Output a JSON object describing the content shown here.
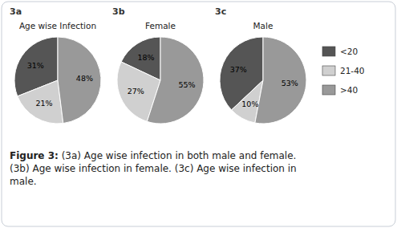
{
  "chart_data": [
    {
      "type": "pie",
      "title": "3a",
      "subtitle": "Age wise Infection",
      "categories": [
        "<20",
        "21-40",
        ">40"
      ],
      "values": [
        31,
        21,
        48
      ],
      "value_labels": [
        "31%",
        "21%",
        "48%"
      ],
      "data_labels": true,
      "colors": [
        "#555555",
        "#d0d0d0",
        "#999999"
      ],
      "legend": "right"
    },
    {
      "type": "pie",
      "title": "3b",
      "subtitle": "Female",
      "categories": [
        "<20",
        "21-40",
        ">40"
      ],
      "values": [
        18,
        27,
        55
      ],
      "value_labels": [
        "18%",
        "27%",
        "55%"
      ],
      "data_labels": true,
      "colors": [
        "#555555",
        "#d0d0d0",
        "#999999"
      ]
    },
    {
      "type": "pie",
      "title": "3c",
      "subtitle": "Male",
      "categories": [
        "<20",
        "21-40",
        ">40"
      ],
      "values": [
        37,
        10,
        53
      ],
      "value_labels": [
        "37%",
        "10%",
        "53%"
      ],
      "data_labels": true,
      "colors": [
        "#555555",
        "#d0d0d0",
        "#999999"
      ]
    }
  ],
  "annotations": [
    "Figure 3:",
    " (3a) Age wise infection in both male and female.\n(3b) Age wise infection in female. (3c) Age wise infection in\nmale."
  ]
}
